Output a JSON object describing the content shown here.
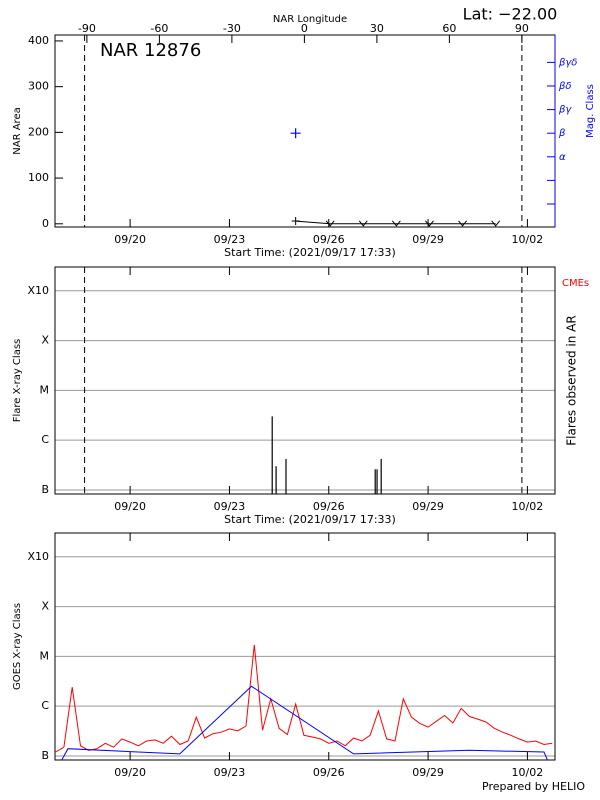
{
  "chart_data": [
    {
      "type": "line",
      "title": "Lat: −22.00",
      "annotation": "NAR 12876",
      "x_label": "Start Time: (2021/09/17 17:33)",
      "y_label": "NAR Area",
      "x2_label": "NAR Longitude",
      "y2_label": "Mag. Class",
      "xlim": [
        "2021-09-17T17:33",
        "2021-10-02T20:00"
      ],
      "xticks": [
        {
          "value": "2021-09-20T00:00",
          "label": "09/20"
        },
        {
          "value": "2021-09-23T00:00",
          "label": "09/23"
        },
        {
          "value": "2021-09-26T00:00",
          "label": "09/26"
        },
        {
          "value": "2021-09-29T00:00",
          "label": "09/29"
        },
        {
          "value": "2021-10-02T00:00",
          "label": "10/02"
        }
      ],
      "ylim": [
        -7,
        413
      ],
      "yticks": [
        0,
        100,
        200,
        300,
        400
      ],
      "x2lim": [
        -103.2,
        103.7
      ],
      "x2ticks": [
        -90,
        -60,
        -30,
        0,
        30,
        60,
        90
      ],
      "y2categories": [
        null,
        null,
        "α",
        "β",
        "βγ",
        "βδ",
        "βγδ"
      ],
      "vlines": [
        "2021-09-18T15:00",
        "2021-10-01T20:00"
      ],
      "series": [
        {
          "color": "#000000",
          "x": [
            "2021-09-25T00:00",
            "2021-09-26T01:00",
            "2021-09-27T01:00",
            "2021-09-28T01:00",
            "2021-09-29T01:00",
            "2021-09-30T01:00",
            "2021-10-01T01:00"
          ],
          "values": [
            6,
            0,
            0,
            0,
            0,
            0,
            0
          ]
        },
        {
          "color": "#0000ff",
          "axis": "y2",
          "x": [
            "2021-09-25T00:00"
          ],
          "values": [
            "β"
          ]
        }
      ]
    },
    {
      "type": "bar",
      "x_label": "Start Time: (2021/09/17 17:33)",
      "y_label": "Flare X-ray Class",
      "y2_label": "Flares observed in AR",
      "cme_label": "CMEs",
      "cme_color": "#ff0000",
      "xlim": [
        "2021-09-17T17:33",
        "2021-10-02T20:00"
      ],
      "xticks": [
        {
          "value": "2021-09-20T00:00",
          "label": "09/20"
        },
        {
          "value": "2021-09-23T00:00",
          "label": "09/23"
        },
        {
          "value": "2021-09-26T00:00",
          "label": "09/26"
        },
        {
          "value": "2021-09-29T00:00",
          "label": "09/29"
        },
        {
          "value": "2021-10-02T00:00",
          "label": "10/02"
        }
      ],
      "log_scale": true,
      "grid": true,
      "ylim": [
        8.3e-08,
        0.003
      ],
      "yticks": [
        {
          "value": 1e-07,
          "label": "B"
        },
        {
          "value": 1e-06,
          "label": "C"
        },
        {
          "value": 1e-05,
          "label": "M"
        },
        {
          "value": 0.0001,
          "label": "X"
        },
        {
          "value": 0.001,
          "label": "X10"
        }
      ],
      "vlines": [
        "2021-09-18T15:00",
        "2021-10-01T20:00"
      ],
      "series": [
        {
          "color": "#000000",
          "x": [
            "2021-09-24T07:00",
            "2021-09-24T09:50",
            "2021-09-24T17:00",
            "2021-09-27T09:40",
            "2021-09-27T11:00",
            "2021-09-27T14:00"
          ],
          "values": [
            3e-06,
            3e-07,
            4.2e-07,
            2.6e-07,
            2.6e-07,
            4.2e-07
          ]
        }
      ]
    },
    {
      "type": "line",
      "y_label": "GOES X-ray Class",
      "footer": "Prepared by HELIO",
      "xlim": [
        "2021-09-17T17:33",
        "2021-10-02T20:00"
      ],
      "xticks": [
        {
          "value": "2021-09-20T00:00",
          "label": "09/20"
        },
        {
          "value": "2021-09-23T00:00",
          "label": "09/23"
        },
        {
          "value": "2021-09-26T00:00",
          "label": "09/26"
        },
        {
          "value": "2021-09-29T00:00",
          "label": "09/29"
        },
        {
          "value": "2021-10-02T00:00",
          "label": "10/02"
        }
      ],
      "log_scale": true,
      "grid": true,
      "ylim": [
        8.3e-08,
        0.003
      ],
      "yticks": [
        {
          "value": 1e-07,
          "label": "B"
        },
        {
          "value": 1e-06,
          "label": "C"
        },
        {
          "value": 1e-05,
          "label": "M"
        },
        {
          "value": 0.0001,
          "label": "X"
        },
        {
          "value": 0.001,
          "label": "X10"
        }
      ],
      "series": [
        {
          "color": "#ff0000",
          "x": [
            "2021-09-17T18:00",
            "2021-09-18T00:00",
            "2021-09-18T06:00",
            "2021-09-18T12:00",
            "2021-09-18T18:00",
            "2021-09-19T00:00",
            "2021-09-19T06:00",
            "2021-09-19T12:00",
            "2021-09-19T18:00",
            "2021-09-20T00:00",
            "2021-09-20T06:00",
            "2021-09-20T12:00",
            "2021-09-20T18:00",
            "2021-09-21T00:00",
            "2021-09-21T06:00",
            "2021-09-21T12:00",
            "2021-09-21T18:00",
            "2021-09-22T00:00",
            "2021-09-22T06:00",
            "2021-09-22T12:00",
            "2021-09-22T18:00",
            "2021-09-23T00:00",
            "2021-09-23T06:00",
            "2021-09-23T12:00",
            "2021-09-23T18:00",
            "2021-09-24T00:00",
            "2021-09-24T06:00",
            "2021-09-24T12:00",
            "2021-09-24T18:00",
            "2021-09-25T00:00",
            "2021-09-25T06:00",
            "2021-09-25T12:00",
            "2021-09-25T18:00",
            "2021-09-26T00:00",
            "2021-09-26T06:00",
            "2021-09-26T12:00",
            "2021-09-26T18:00",
            "2021-09-27T00:00",
            "2021-09-27T06:00",
            "2021-09-27T12:00",
            "2021-09-27T18:00",
            "2021-09-28T00:00",
            "2021-09-28T06:00",
            "2021-09-28T12:00",
            "2021-09-28T18:00",
            "2021-09-29T00:00",
            "2021-09-29T06:00",
            "2021-09-29T12:00",
            "2021-09-29T18:00",
            "2021-09-30T00:00",
            "2021-09-30T06:00",
            "2021-09-30T12:00",
            "2021-09-30T18:00",
            "2021-10-01T00:00",
            "2021-10-01T06:00",
            "2021-10-01T12:00",
            "2021-10-01T18:00",
            "2021-10-02T00:00",
            "2021-10-02T06:00",
            "2021-10-02T12:00",
            "2021-10-02T18:00"
          ],
          "values": [
            1.2e-07,
            1.5e-07,
            2.4e-06,
            1.6e-07,
            1.3e-07,
            1.4e-07,
            1.8e-07,
            1.5e-07,
            2.2e-07,
            1.9e-07,
            1.6e-07,
            2e-07,
            2.1e-07,
            1.8e-07,
            2.5e-07,
            1.7e-07,
            2e-07,
            6e-07,
            2.3e-07,
            2.8e-07,
            3e-07,
            3.5e-07,
            3.2e-07,
            4e-07,
            1.7e-05,
            3.3e-07,
            1.4e-06,
            3.6e-07,
            2.7e-07,
            1.1e-06,
            2.6e-07,
            2.4e-07,
            2.2e-07,
            1.8e-07,
            2e-07,
            1.6e-07,
            2.3e-07,
            2e-07,
            2.6e-07,
            8e-07,
            2.2e-07,
            2e-07,
            1.4e-06,
            6e-07,
            4.5e-07,
            3.8e-07,
            5e-07,
            6.5e-07,
            4.6e-07,
            9e-07,
            6.2e-07,
            5.5e-07,
            4.8e-07,
            3.6e-07,
            3e-07,
            2.6e-07,
            2.2e-07,
            1.9e-07,
            2e-07,
            1.7e-07,
            1.8e-07
          ]
        },
        {
          "color": "#0000ff",
          "x": [
            "2021-09-17T18:00",
            "2021-09-18T03:00",
            "2021-09-21T12:00",
            "2021-09-23T16:00",
            "2021-09-26T18:00",
            "2021-09-30T06:00",
            "2021-10-02T12:00",
            "2021-10-02T18:00"
          ],
          "values": [
            5e-08,
            1.4e-07,
            1.1e-07,
            2.5e-06,
            1.1e-07,
            1.3e-07,
            1.2e-07,
            5e-08
          ]
        }
      ]
    }
  ]
}
